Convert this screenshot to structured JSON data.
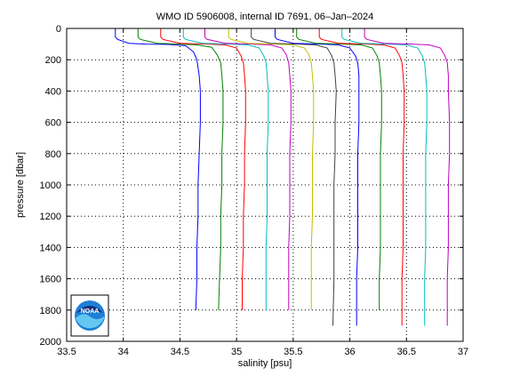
{
  "chart_data": {
    "type": "line",
    "title": "WMO ID 5906008, internal ID 7691, 06–Jan–2024",
    "xlabel": "salinity [psu]",
    "ylabel": "pressure [dbar]",
    "xlim": [
      33.5,
      37
    ],
    "ylim": [
      0,
      2000
    ],
    "y_reversed": true,
    "xticks": [
      "33.5",
      "34",
      "34.5",
      "35",
      "35.5",
      "36",
      "36.5",
      "37"
    ],
    "yticks": [
      "0",
      "200",
      "400",
      "600",
      "800",
      "1000",
      "1200",
      "1400",
      "1600",
      "1800",
      "2000"
    ],
    "grid": true,
    "series": [
      {
        "color": "#0000ff",
        "points": [
          [
            33.93,
            0
          ],
          [
            33.93,
            55
          ],
          [
            33.95,
            70
          ],
          [
            34.05,
            95
          ],
          [
            34.2,
            100
          ],
          [
            34.4,
            102
          ],
          [
            34.55,
            110
          ],
          [
            34.62,
            150
          ],
          [
            34.65,
            200
          ],
          [
            34.67,
            300
          ],
          [
            34.68,
            400
          ],
          [
            34.68,
            600
          ],
          [
            34.67,
            800
          ],
          [
            34.66,
            1000
          ],
          [
            34.66,
            1200
          ],
          [
            34.65,
            1400
          ],
          [
            34.65,
            1600
          ],
          [
            34.64,
            1800
          ]
        ]
      },
      {
        "color": "#008000",
        "points": [
          [
            34.13,
            0
          ],
          [
            34.13,
            55
          ],
          [
            34.15,
            70
          ],
          [
            34.3,
            95
          ],
          [
            34.5,
            100
          ],
          [
            34.65,
            105
          ],
          [
            34.78,
            120
          ],
          [
            34.83,
            170
          ],
          [
            34.86,
            220
          ],
          [
            34.87,
            300
          ],
          [
            34.88,
            400
          ],
          [
            34.88,
            600
          ],
          [
            34.87,
            800
          ],
          [
            34.87,
            1000
          ],
          [
            34.86,
            1200
          ],
          [
            34.86,
            1400
          ],
          [
            34.85,
            1600
          ],
          [
            34.84,
            1800
          ]
        ]
      },
      {
        "color": "#ff0000",
        "points": [
          [
            34.33,
            0
          ],
          [
            34.33,
            55
          ],
          [
            34.35,
            70
          ],
          [
            34.5,
            95
          ],
          [
            34.75,
            100
          ],
          [
            34.9,
            105
          ],
          [
            35.0,
            125
          ],
          [
            35.04,
            175
          ],
          [
            35.06,
            220
          ],
          [
            35.07,
            300
          ],
          [
            35.08,
            400
          ],
          [
            35.08,
            600
          ],
          [
            35.07,
            800
          ],
          [
            35.07,
            1000
          ],
          [
            35.06,
            1200
          ],
          [
            35.06,
            1400
          ],
          [
            35.05,
            1600
          ],
          [
            35.05,
            1800
          ]
        ]
      },
      {
        "color": "#00bfbf",
        "points": [
          [
            34.53,
            0
          ],
          [
            34.53,
            55
          ],
          [
            34.55,
            70
          ],
          [
            34.7,
            95
          ],
          [
            34.95,
            100
          ],
          [
            35.1,
            105
          ],
          [
            35.2,
            125
          ],
          [
            35.24,
            175
          ],
          [
            35.26,
            220
          ],
          [
            35.27,
            300
          ],
          [
            35.28,
            400
          ],
          [
            35.28,
            600
          ],
          [
            35.27,
            800
          ],
          [
            35.27,
            1000
          ],
          [
            35.27,
            1200
          ],
          [
            35.26,
            1400
          ],
          [
            35.26,
            1600
          ],
          [
            35.26,
            1800
          ]
        ]
      },
      {
        "color": "#bf00bf",
        "points": [
          [
            34.72,
            0
          ],
          [
            34.72,
            55
          ],
          [
            34.74,
            70
          ],
          [
            34.9,
            95
          ],
          [
            35.15,
            100
          ],
          [
            35.3,
            105
          ],
          [
            35.4,
            125
          ],
          [
            35.44,
            170
          ],
          [
            35.46,
            220
          ],
          [
            35.47,
            300
          ],
          [
            35.48,
            400
          ],
          [
            35.48,
            600
          ],
          [
            35.47,
            800
          ],
          [
            35.47,
            1000
          ],
          [
            35.47,
            1200
          ],
          [
            35.46,
            1400
          ],
          [
            35.46,
            1600
          ],
          [
            35.46,
            1800
          ]
        ]
      },
      {
        "color": "#bfbf00",
        "points": [
          [
            34.93,
            0
          ],
          [
            34.93,
            55
          ],
          [
            34.95,
            70
          ],
          [
            35.1,
            95
          ],
          [
            35.35,
            100
          ],
          [
            35.5,
            105
          ],
          [
            35.6,
            125
          ],
          [
            35.64,
            170
          ],
          [
            35.66,
            220
          ],
          [
            35.67,
            300
          ],
          [
            35.68,
            400
          ],
          [
            35.68,
            600
          ],
          [
            35.67,
            800
          ],
          [
            35.67,
            1000
          ],
          [
            35.67,
            1200
          ],
          [
            35.66,
            1400
          ],
          [
            35.66,
            1600
          ],
          [
            35.66,
            1800
          ]
        ]
      },
      {
        "color": "#404040",
        "points": [
          [
            35.13,
            0
          ],
          [
            35.13,
            55
          ],
          [
            35.15,
            70
          ],
          [
            35.3,
            95
          ],
          [
            35.55,
            100
          ],
          [
            35.7,
            105
          ],
          [
            35.8,
            125
          ],
          [
            35.84,
            175
          ],
          [
            35.86,
            220
          ],
          [
            35.87,
            300
          ],
          [
            35.88,
            400
          ],
          [
            35.87,
            600
          ],
          [
            35.87,
            800
          ],
          [
            35.86,
            1000
          ],
          [
            35.86,
            1200
          ],
          [
            35.86,
            1400
          ],
          [
            35.86,
            1600
          ],
          [
            35.85,
            1900
          ]
        ]
      },
      {
        "color": "#0000ff",
        "points": [
          [
            35.34,
            0
          ],
          [
            35.34,
            55
          ],
          [
            35.36,
            70
          ],
          [
            35.5,
            95
          ],
          [
            35.75,
            100
          ],
          [
            35.9,
            105
          ],
          [
            36.0,
            125
          ],
          [
            36.05,
            175
          ],
          [
            36.07,
            220
          ],
          [
            36.08,
            300
          ],
          [
            36.08,
            400
          ],
          [
            36.08,
            600
          ],
          [
            36.07,
            800
          ],
          [
            36.07,
            1000
          ],
          [
            36.07,
            1200
          ],
          [
            36.07,
            1400
          ],
          [
            36.06,
            1600
          ],
          [
            36.06,
            1900
          ]
        ]
      },
      {
        "color": "#008000",
        "points": [
          [
            35.53,
            0
          ],
          [
            35.53,
            55
          ],
          [
            35.55,
            70
          ],
          [
            35.7,
            95
          ],
          [
            35.95,
            100
          ],
          [
            36.1,
            105
          ],
          [
            36.2,
            125
          ],
          [
            36.24,
            175
          ],
          [
            36.26,
            220
          ],
          [
            36.27,
            300
          ],
          [
            36.28,
            400
          ],
          [
            36.28,
            600
          ],
          [
            36.27,
            800
          ],
          [
            36.27,
            1000
          ],
          [
            36.27,
            1200
          ],
          [
            36.27,
            1400
          ],
          [
            36.26,
            1600
          ],
          [
            36.26,
            1800
          ]
        ]
      },
      {
        "color": "#ff0000",
        "points": [
          [
            35.73,
            0
          ],
          [
            35.73,
            55
          ],
          [
            35.75,
            70
          ],
          [
            35.9,
            95
          ],
          [
            36.15,
            100
          ],
          [
            36.3,
            105
          ],
          [
            36.4,
            125
          ],
          [
            36.44,
            175
          ],
          [
            36.46,
            220
          ],
          [
            36.47,
            300
          ],
          [
            36.48,
            400
          ],
          [
            36.48,
            600
          ],
          [
            36.47,
            800
          ],
          [
            36.47,
            1000
          ],
          [
            36.47,
            1200
          ],
          [
            36.47,
            1400
          ],
          [
            36.46,
            1600
          ],
          [
            36.46,
            1900
          ]
        ]
      },
      {
        "color": "#00bfbf",
        "points": [
          [
            35.93,
            0
          ],
          [
            35.93,
            55
          ],
          [
            35.95,
            70
          ],
          [
            36.1,
            95
          ],
          [
            36.35,
            100
          ],
          [
            36.5,
            105
          ],
          [
            36.6,
            125
          ],
          [
            36.64,
            175
          ],
          [
            36.66,
            220
          ],
          [
            36.67,
            300
          ],
          [
            36.68,
            400
          ],
          [
            36.68,
            600
          ],
          [
            36.67,
            800
          ],
          [
            36.67,
            1000
          ],
          [
            36.67,
            1200
          ],
          [
            36.67,
            1400
          ],
          [
            36.66,
            1600
          ],
          [
            36.66,
            1900
          ]
        ]
      },
      {
        "color": "#bf00bf",
        "points": [
          [
            36.13,
            0
          ],
          [
            36.13,
            55
          ],
          [
            36.15,
            70
          ],
          [
            36.3,
            95
          ],
          [
            36.55,
            100
          ],
          [
            36.7,
            105
          ],
          [
            36.8,
            125
          ],
          [
            36.84,
            175
          ],
          [
            36.86,
            220
          ],
          [
            36.87,
            300
          ],
          [
            36.87,
            400
          ],
          [
            36.88,
            600
          ],
          [
            36.88,
            800
          ],
          [
            36.87,
            1000
          ],
          [
            36.87,
            1200
          ],
          [
            36.87,
            1400
          ],
          [
            36.86,
            1600
          ],
          [
            36.86,
            1900
          ]
        ]
      }
    ]
  },
  "logo": {
    "name": "noaa-logo",
    "text": "NOAA"
  }
}
